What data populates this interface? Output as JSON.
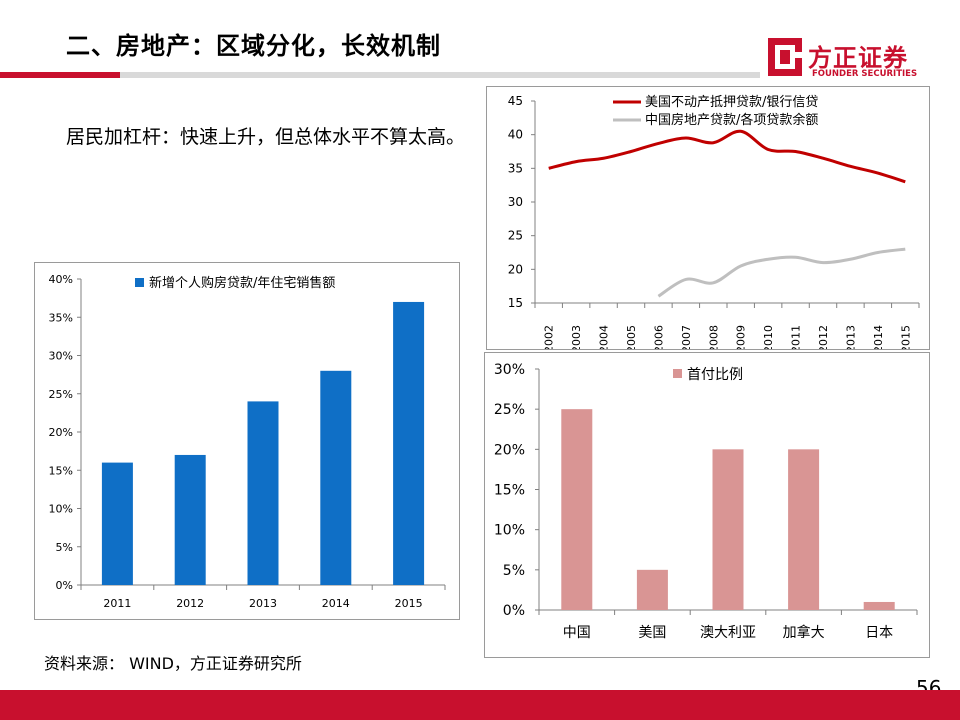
{
  "header": {
    "title": "二、房地产：区域分化，长效机制"
  },
  "brand": {
    "name": "方正证券",
    "sub": "FOUNDER SECURITIES",
    "color": "#c8102e"
  },
  "body": {
    "text": "居民加杠杆：快速上升，但总体水平不算太高。"
  },
  "footer": {
    "source": "资料来源： WIND，方正证券研究所",
    "page_number": "56"
  },
  "colors": {
    "accent": "#c8102e",
    "bar_blue": "#0f6fc6",
    "bar_pink": "#d99594",
    "line_red": "#c00000",
    "line_gray": "#bfbfbf"
  },
  "chart_data": [
    {
      "type": "bar",
      "title": "",
      "legend": "新增个人购房贷款/年住宅销售额",
      "categories": [
        "2011",
        "2012",
        "2013",
        "2014",
        "2015"
      ],
      "values": [
        16,
        17,
        24,
        28,
        37
      ],
      "ylim": [
        0,
        40
      ],
      "yticks": [
        "0%",
        "5%",
        "10%",
        "15%",
        "20%",
        "25%",
        "30%",
        "35%",
        "40%"
      ],
      "xlabel": "",
      "ylabel": "",
      "legend_position": "top"
    },
    {
      "type": "line",
      "x": [
        "2002",
        "2003",
        "2004",
        "2005",
        "2006",
        "2007",
        "2008",
        "2009",
        "2010",
        "2011",
        "2012",
        "2013",
        "2014",
        "2015"
      ],
      "series": [
        {
          "name": "美国不动产抵押贷款/银行信贷",
          "color": "#c00000",
          "values": [
            35,
            36,
            36.5,
            37.5,
            38.7,
            39.5,
            38.8,
            40.5,
            37.8,
            37.5,
            36.5,
            35.3,
            34.3,
            33
          ]
        },
        {
          "name": "中国房地产贷款/各项贷款余额",
          "color": "#bfbfbf",
          "values": [
            null,
            null,
            null,
            null,
            16,
            18.5,
            18,
            20.5,
            21.5,
            21.8,
            21,
            21.5,
            22.5,
            23
          ]
        }
      ],
      "ylim": [
        15,
        45
      ],
      "yticks": [
        "15",
        "20",
        "25",
        "30",
        "35",
        "40",
        "45"
      ],
      "legend_position": "top-right"
    },
    {
      "type": "bar",
      "legend": "首付比例",
      "categories": [
        "中国",
        "美国",
        "澳大利亚",
        "加拿大",
        "日本"
      ],
      "values": [
        25,
        5,
        20,
        20,
        1
      ],
      "ylim": [
        0,
        30
      ],
      "yticks": [
        "0%",
        "5%",
        "10%",
        "15%",
        "20%",
        "25%",
        "30%"
      ],
      "legend_position": "top"
    }
  ]
}
